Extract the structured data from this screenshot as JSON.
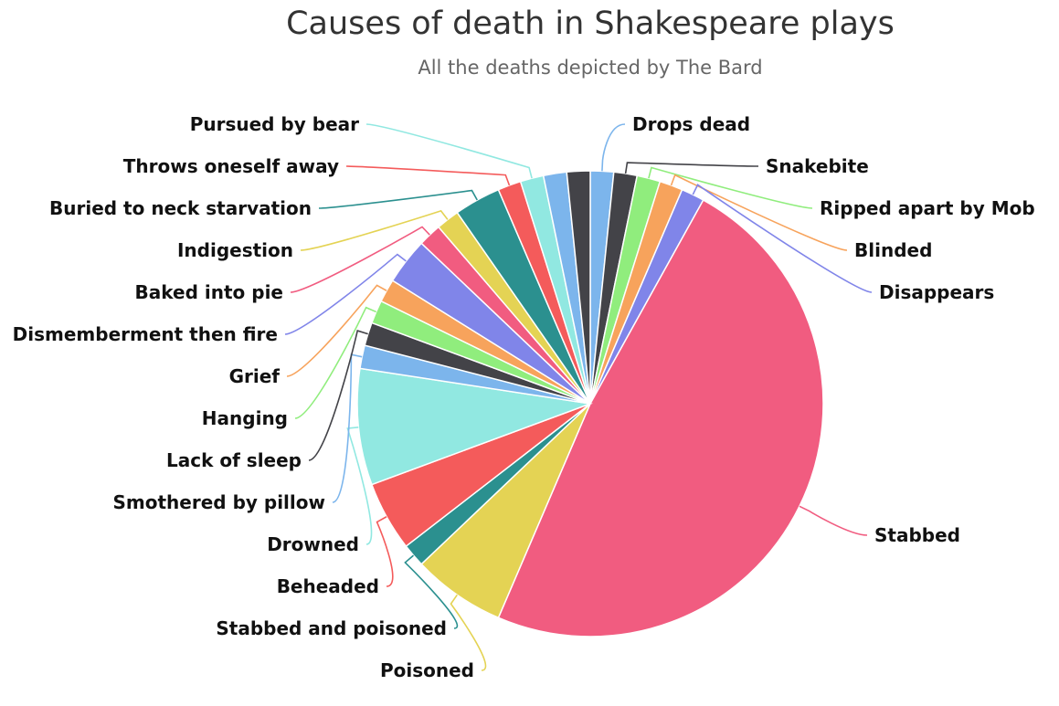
{
  "chart_data": {
    "type": "pie",
    "title": "Causes of death in Shakespeare plays",
    "subtitle": "All the deaths depicted by The Bard",
    "slices": [
      {
        "name": "Drops dead",
        "value": 1,
        "color": "#7cb5ec"
      },
      {
        "name": "Snakebite",
        "value": 1,
        "color": "#434348"
      },
      {
        "name": "Ripped apart by Mob",
        "value": 1,
        "color": "#90ed7d"
      },
      {
        "name": "Blinded",
        "value": 1,
        "color": "#f7a35c"
      },
      {
        "name": "Disappears",
        "value": 1,
        "color": "#8085e9"
      },
      {
        "name": "Stabbed",
        "value": 30,
        "color": "#f15c80"
      },
      {
        "name": "Poisoned",
        "value": 4,
        "color": "#e4d354"
      },
      {
        "name": "Stabbed and poisoned",
        "value": 1,
        "color": "#2b908f"
      },
      {
        "name": "Beheaded",
        "value": 3,
        "color": "#f45b5b"
      },
      {
        "name": "Drowned",
        "value": 5,
        "color": "#91e8e1"
      },
      {
        "name": "Smothered by pillow",
        "value": 1,
        "color": "#7cb5ec"
      },
      {
        "name": "Lack of sleep",
        "value": 1,
        "color": "#434348"
      },
      {
        "name": "Hanging",
        "value": 1,
        "color": "#90ed7d"
      },
      {
        "name": "Grief",
        "value": 1,
        "color": "#f7a35c"
      },
      {
        "name": "Dismemberment then fire",
        "value": 2,
        "color": "#8085e9"
      },
      {
        "name": "Baked into pie",
        "value": 1,
        "color": "#f15c80"
      },
      {
        "name": "Indigestion",
        "value": 1,
        "color": "#e4d354"
      },
      {
        "name": "Buried to neck starvation",
        "value": 2,
        "color": "#2b908f"
      },
      {
        "name": "Throws oneself away",
        "value": 1,
        "color": "#f45b5b"
      },
      {
        "name": "Pursued by bear",
        "value": 1,
        "color": "#91e8e1"
      },
      {
        "name": "",
        "value": 1,
        "color": "#7cb5ec"
      },
      {
        "name": "",
        "value": 1,
        "color": "#434348"
      }
    ]
  }
}
